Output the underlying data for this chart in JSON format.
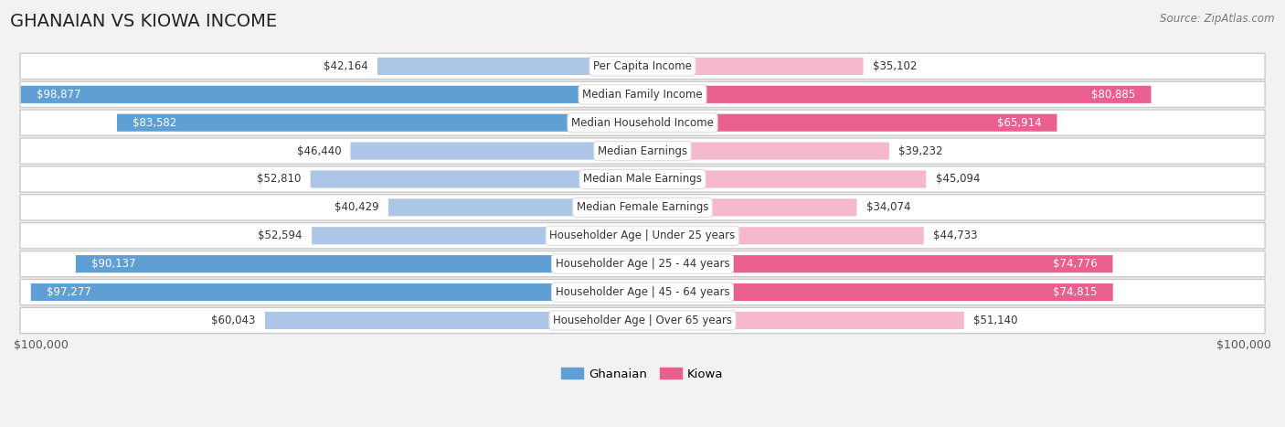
{
  "title": "GHANAIAN VS KIOWA INCOME",
  "source": "Source: ZipAtlas.com",
  "categories": [
    "Per Capita Income",
    "Median Family Income",
    "Median Household Income",
    "Median Earnings",
    "Median Male Earnings",
    "Median Female Earnings",
    "Householder Age | Under 25 years",
    "Householder Age | 25 - 44 years",
    "Householder Age | 45 - 64 years",
    "Householder Age | Over 65 years"
  ],
  "ghanaian_values": [
    42164,
    98877,
    83582,
    46440,
    52810,
    40429,
    52594,
    90137,
    97277,
    60043
  ],
  "kiowa_values": [
    35102,
    80885,
    65914,
    39232,
    45094,
    34074,
    44733,
    74776,
    74815,
    51140
  ],
  "ghanaian_labels": [
    "$42,164",
    "$98,877",
    "$83,582",
    "$46,440",
    "$52,810",
    "$40,429",
    "$52,594",
    "$90,137",
    "$97,277",
    "$60,043"
  ],
  "kiowa_labels": [
    "$35,102",
    "$80,885",
    "$65,914",
    "$39,232",
    "$45,094",
    "$34,074",
    "$44,733",
    "$74,776",
    "$74,815",
    "$51,140"
  ],
  "max_value": 100000,
  "ghanaian_color_light": "#adc6e8",
  "ghanaian_color_dark": "#5f9fd4",
  "kiowa_color_light": "#f5b8cc",
  "kiowa_color_dark": "#e96090",
  "background_color": "#f2f2f2",
  "row_bg_color": "#ffffff",
  "row_border_color": "#d8d8d8",
  "legend_ghanaian": "Ghanaian",
  "legend_kiowa": "Kiowa",
  "bar_height": 0.62,
  "xlabel_left": "$100,000",
  "xlabel_right": "$100,000",
  "title_fontsize": 14,
  "label_fontsize": 8.5,
  "cat_fontsize": 8.5
}
